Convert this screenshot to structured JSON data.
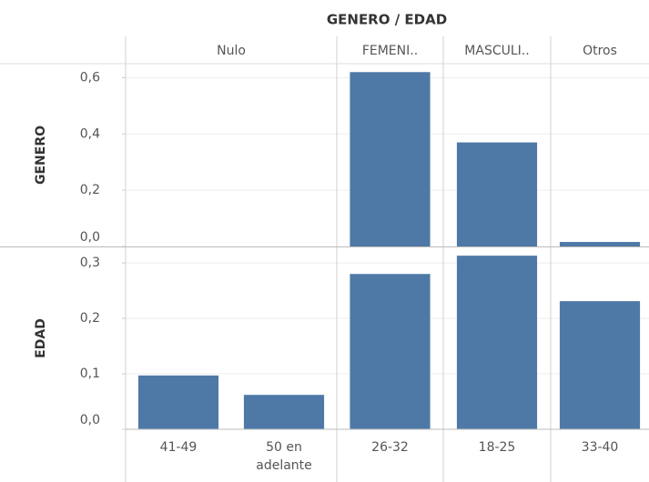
{
  "title": "GENERO / EDAD",
  "chart_data": [
    {
      "type": "bar",
      "y_label": "GENERO",
      "color": "#4e79a7",
      "categories": [
        "Nulo",
        "FEMENI..",
        "MASCULI..",
        "Otros"
      ],
      "values": [
        null,
        0.62,
        0.37,
        0.016
      ],
      "ylim": [
        0,
        0.65
      ],
      "yticks": [
        {
          "value": 0,
          "label": "0,0"
        },
        {
          "value": 0.2,
          "label": "0,2"
        },
        {
          "value": 0.4,
          "label": "0,4"
        },
        {
          "value": 0.6,
          "label": "0,6"
        }
      ],
      "grid": true
    },
    {
      "type": "bar",
      "y_label": "EDAD",
      "color": "#4e79a7",
      "categories": [
        "41-49",
        "50 en adelante",
        "26-32",
        "18-25",
        "33-40"
      ],
      "values": [
        0.097,
        0.062,
        0.28,
        0.313,
        0.231
      ],
      "ylim": [
        0,
        0.328
      ],
      "yticks": [
        {
          "value": 0,
          "label": "0,0"
        },
        {
          "value": 0.1,
          "label": "0,1"
        },
        {
          "value": 0.2,
          "label": "0,2"
        },
        {
          "value": 0.3,
          "label": "0,3"
        }
      ],
      "grid": true
    }
  ]
}
